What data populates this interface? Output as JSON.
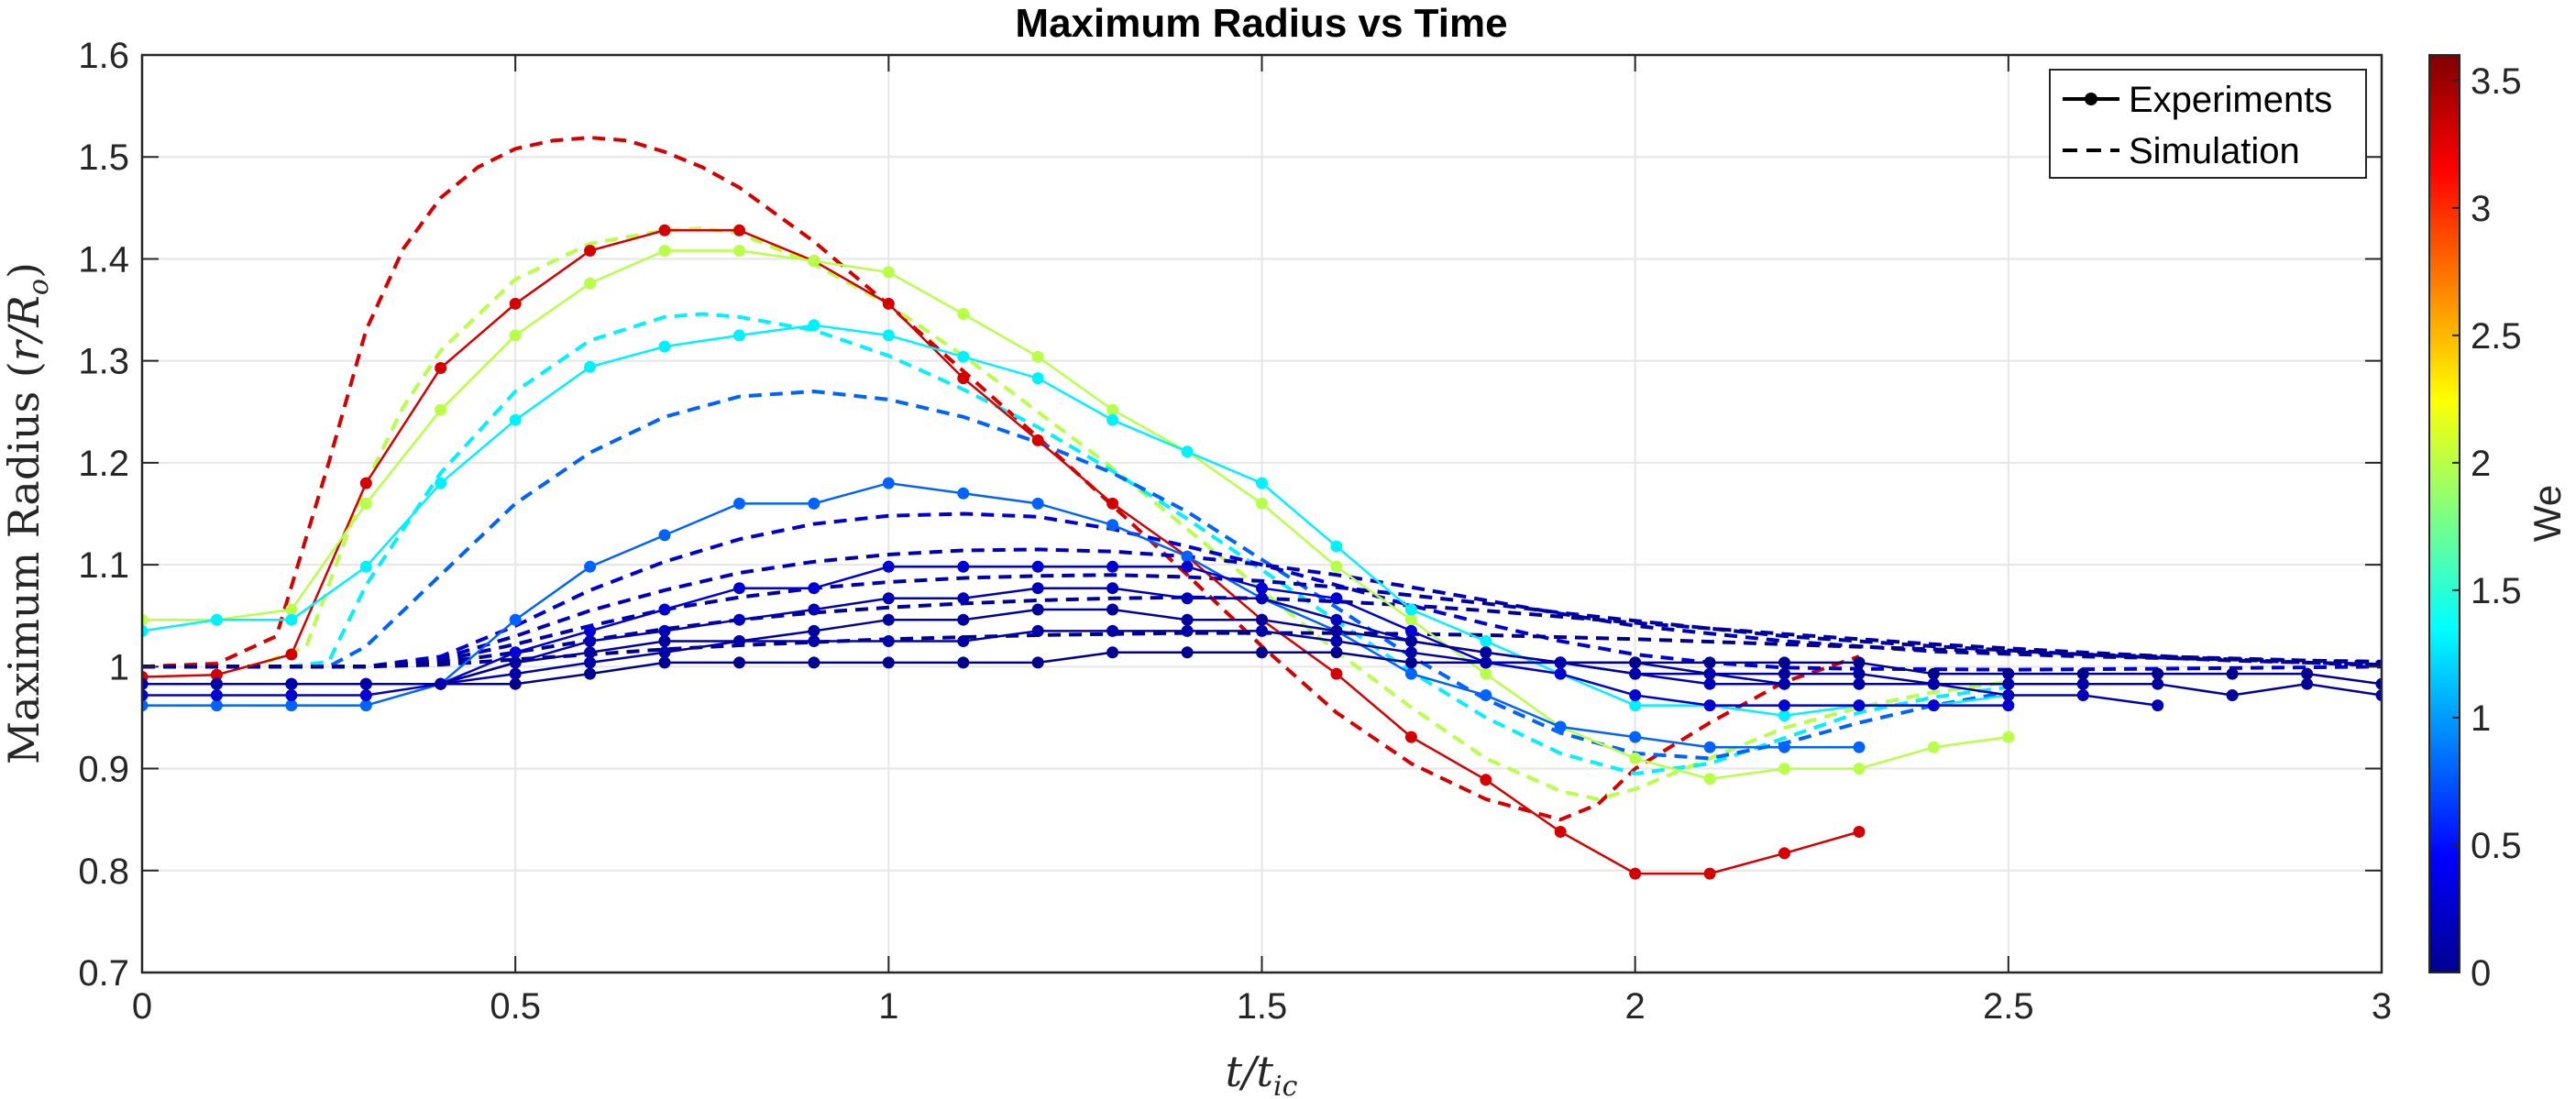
{
  "chart_data": {
    "type": "line",
    "title": "Maximum Radius vs Time",
    "xlabel": "t/t_ic",
    "ylabel": "Maximum Radius (r/R_o)",
    "xlim": [
      0,
      3
    ],
    "ylim": [
      0.7,
      1.6
    ],
    "xticks": [
      "0",
      "0.5",
      "1",
      "1.5",
      "2",
      "2.5",
      "3"
    ],
    "yticks": [
      "0.7",
      "0.8",
      "0.9",
      "1",
      "1.1",
      "1.2",
      "1.3",
      "1.4",
      "1.5",
      "1.6"
    ],
    "grid": true,
    "legend": {
      "position": "top-right",
      "entries": [
        {
          "label": "Experiments",
          "style": "solid-marker"
        },
        {
          "label": "Simulation",
          "style": "dashed"
        }
      ]
    },
    "colorbar": {
      "label": "We",
      "range": [
        0,
        3.6
      ],
      "ticks": [
        "0",
        "0.5",
        "1",
        "1.5",
        "2",
        "2.5",
        "3",
        "3.5"
      ],
      "colormap": "jet"
    },
    "experiments": [
      {
        "we": 3.3,
        "x": [
          0,
          0.1,
          0.2,
          0.3,
          0.4,
          0.5,
          0.6,
          0.7,
          0.8,
          0.9,
          1.0,
          1.1,
          1.2,
          1.3,
          1.4,
          1.5,
          1.6,
          1.7,
          1.8,
          1.9,
          2.0,
          2.1,
          2.2,
          2.3
        ],
        "y": [
          0.99,
          0.992,
          1.012,
          1.18,
          1.293,
          1.356,
          1.408,
          1.428,
          1.428,
          1.398,
          1.356,
          1.283,
          1.222,
          1.16,
          1.108,
          1.046,
          0.993,
          0.931,
          0.889,
          0.838,
          0.797,
          0.797,
          0.817,
          0.838
        ]
      },
      {
        "we": 2.0,
        "x": [
          0,
          0.1,
          0.2,
          0.3,
          0.4,
          0.5,
          0.6,
          0.7,
          0.8,
          0.9,
          1.0,
          1.1,
          1.2,
          1.3,
          1.4,
          1.5,
          1.6,
          1.7,
          1.8,
          1.9,
          2.0,
          2.1,
          2.2,
          2.3,
          2.4,
          2.5
        ],
        "y": [
          1.046,
          1.046,
          1.056,
          1.16,
          1.252,
          1.325,
          1.376,
          1.408,
          1.408,
          1.398,
          1.387,
          1.346,
          1.304,
          1.252,
          1.211,
          1.16,
          1.098,
          1.046,
          0.993,
          0.941,
          0.91,
          0.89,
          0.9,
          0.9,
          0.921,
          0.931
        ]
      },
      {
        "we": 1.3,
        "x": [
          0,
          0.1,
          0.2,
          0.3,
          0.4,
          0.5,
          0.6,
          0.7,
          0.8,
          0.9,
          1.0,
          1.1,
          1.2,
          1.3,
          1.4,
          1.5,
          1.6,
          1.7,
          1.8,
          1.9,
          2.0,
          2.1,
          2.2,
          2.3,
          2.4,
          2.5
        ],
        "y": [
          1.035,
          1.046,
          1.046,
          1.098,
          1.18,
          1.242,
          1.294,
          1.314,
          1.325,
          1.335,
          1.325,
          1.304,
          1.283,
          1.242,
          1.211,
          1.18,
          1.118,
          1.056,
          1.025,
          0.993,
          0.962,
          0.962,
          0.952,
          0.962,
          0.962,
          0.972
        ]
      },
      {
        "we": 0.8,
        "x": [
          0,
          0.1,
          0.2,
          0.3,
          0.4,
          0.5,
          0.6,
          0.7,
          0.8,
          0.9,
          1.0,
          1.1,
          1.2,
          1.3,
          1.4,
          1.5,
          1.6,
          1.7,
          1.8,
          1.9,
          2.0,
          2.1,
          2.2,
          2.3
        ],
        "y": [
          0.962,
          0.962,
          0.962,
          0.962,
          0.983,
          1.046,
          1.098,
          1.129,
          1.16,
          1.16,
          1.18,
          1.17,
          1.16,
          1.139,
          1.108,
          1.067,
          1.035,
          0.993,
          0.972,
          0.941,
          0.931,
          0.921,
          0.921,
          0.921
        ]
      },
      {
        "we": 0.3,
        "x": [
          0,
          0.1,
          0.2,
          0.3,
          0.4,
          0.5,
          0.6,
          0.7,
          0.8,
          0.9,
          1.0,
          1.1,
          1.2,
          1.3,
          1.4,
          1.5,
          1.6,
          1.7,
          1.8,
          1.9,
          2.0,
          2.1,
          2.2,
          2.3,
          2.4,
          2.5
        ],
        "y": [
          0.972,
          0.972,
          0.972,
          0.972,
          0.983,
          1.014,
          1.035,
          1.056,
          1.077,
          1.077,
          1.098,
          1.098,
          1.098,
          1.098,
          1.098,
          1.077,
          1.067,
          1.035,
          1.004,
          0.993,
          0.972,
          0.962,
          0.962,
          0.962,
          0.962,
          0.962
        ]
      },
      {
        "we": 0.2,
        "x": [
          0,
          0.1,
          0.2,
          0.3,
          0.4,
          0.5,
          0.6,
          0.7,
          0.8,
          0.9,
          1.0,
          1.1,
          1.2,
          1.3,
          1.4,
          1.5,
          1.6,
          1.7,
          1.8,
          1.9,
          2.0,
          2.1,
          2.2,
          2.3,
          2.4,
          2.5,
          2.6,
          2.7
        ],
        "y": [
          0.983,
          0.983,
          0.983,
          0.983,
          0.983,
          1.004,
          1.025,
          1.035,
          1.046,
          1.056,
          1.067,
          1.067,
          1.077,
          1.077,
          1.067,
          1.067,
          1.046,
          1.025,
          1.014,
          1.004,
          0.993,
          0.983,
          0.983,
          0.983,
          0.983,
          0.972,
          0.972,
          0.962
        ]
      },
      {
        "we": 0.1,
        "x": [
          0,
          0.1,
          0.2,
          0.3,
          0.4,
          0.5,
          0.6,
          0.7,
          0.8,
          0.9,
          1.0,
          1.1,
          1.2,
          1.3,
          1.4,
          1.5,
          1.6,
          1.7,
          1.8,
          1.9,
          2.0,
          2.1,
          2.2,
          2.3,
          2.4,
          2.5,
          2.6,
          2.7,
          2.8,
          2.9,
          3.0
        ],
        "y": [
          0.983,
          0.983,
          0.983,
          0.983,
          0.983,
          1.004,
          1.014,
          1.025,
          1.025,
          1.035,
          1.046,
          1.046,
          1.056,
          1.056,
          1.046,
          1.046,
          1.035,
          1.025,
          1.014,
          1.004,
          1.004,
          0.993,
          0.993,
          0.993,
          0.983,
          0.983,
          0.983,
          0.983,
          0.972,
          0.983,
          0.972
        ]
      },
      {
        "we": 0.05,
        "x": [
          0,
          0.1,
          0.2,
          0.3,
          0.4,
          0.5,
          0.6,
          0.7,
          0.8,
          0.9,
          1.0,
          1.1,
          1.2,
          1.3,
          1.4,
          1.5,
          1.6,
          1.7,
          1.8,
          1.9,
          2.0,
          2.1,
          2.2,
          2.3,
          2.4,
          2.5,
          2.6,
          2.7,
          2.8,
          2.9,
          3.0
        ],
        "y": [
          0.983,
          0.983,
          0.983,
          0.983,
          0.983,
          0.983,
          0.993,
          1.004,
          1.004,
          1.004,
          1.004,
          1.004,
          1.004,
          1.014,
          1.014,
          1.014,
          1.014,
          1.004,
          1.004,
          1.004,
          1.004,
          1.004,
          1.004,
          1.004,
          0.993,
          0.993,
          0.993,
          0.993,
          0.993,
          0.993,
          0.983
        ]
      },
      {
        "we": 0.15,
        "x": [
          0,
          0.1,
          0.2,
          0.3,
          0.4,
          0.5,
          0.6,
          0.7,
          0.8,
          0.9,
          1.0,
          1.1,
          1.2,
          1.3,
          1.4,
          1.5,
          1.6,
          1.7,
          1.8,
          1.9,
          2.0,
          2.1,
          2.2,
          2.3,
          2.4,
          2.5,
          2.6
        ],
        "y": [
          0.983,
          0.983,
          0.983,
          0.983,
          0.983,
          0.993,
          1.004,
          1.014,
          1.025,
          1.025,
          1.025,
          1.025,
          1.035,
          1.035,
          1.035,
          1.035,
          1.025,
          1.014,
          1.004,
          1.004,
          0.993,
          0.993,
          0.983,
          0.983,
          0.983,
          0.983,
          0.983
        ]
      }
    ],
    "simulations": [
      {
        "we": 3.3,
        "x": [
          0,
          0.1,
          0.18,
          0.25,
          0.3,
          0.35,
          0.4,
          0.45,
          0.5,
          0.55,
          0.6,
          0.65,
          0.7,
          0.75,
          0.8,
          0.9,
          1.0,
          1.1,
          1.2,
          1.3,
          1.4,
          1.5,
          1.6,
          1.7,
          1.8,
          1.9,
          1.95,
          2.0,
          2.1,
          2.2,
          2.3
        ],
        "y": [
          1.0,
          1.003,
          1.03,
          1.2,
          1.33,
          1.41,
          1.46,
          1.49,
          1.508,
          1.516,
          1.519,
          1.516,
          1.505,
          1.49,
          1.47,
          1.417,
          1.355,
          1.29,
          1.225,
          1.158,
          1.09,
          1.02,
          0.955,
          0.905,
          0.87,
          0.85,
          0.865,
          0.9,
          0.945,
          0.985,
          1.01
        ]
      },
      {
        "we": 2.0,
        "x": [
          0,
          0.15,
          0.22,
          0.3,
          0.35,
          0.4,
          0.5,
          0.6,
          0.7,
          0.75,
          0.8,
          0.9,
          1.0,
          1.1,
          1.2,
          1.3,
          1.4,
          1.5,
          1.6,
          1.7,
          1.8,
          1.9,
          1.95,
          2.0,
          2.1,
          2.2,
          2.3,
          2.4,
          2.5
        ],
        "y": [
          1.0,
          1.0,
          1.02,
          1.18,
          1.255,
          1.31,
          1.38,
          1.415,
          1.428,
          1.43,
          1.425,
          1.395,
          1.355,
          1.305,
          1.25,
          1.195,
          1.135,
          1.075,
          1.015,
          0.96,
          0.91,
          0.878,
          0.87,
          0.88,
          0.91,
          0.94,
          0.96,
          0.975,
          0.985
        ]
      },
      {
        "we": 1.3,
        "x": [
          0,
          0.2,
          0.25,
          0.3,
          0.4,
          0.5,
          0.6,
          0.7,
          0.75,
          0.8,
          0.9,
          1.0,
          1.1,
          1.2,
          1.3,
          1.4,
          1.5,
          1.6,
          1.7,
          1.8,
          1.9,
          2.0,
          2.1,
          2.2,
          2.3,
          2.4,
          2.5
        ],
        "y": [
          1.0,
          1.0,
          1.005,
          1.08,
          1.19,
          1.27,
          1.32,
          1.343,
          1.346,
          1.343,
          1.33,
          1.305,
          1.272,
          1.235,
          1.192,
          1.145,
          1.095,
          1.045,
          0.995,
          0.95,
          0.915,
          0.895,
          0.905,
          0.93,
          0.955,
          0.97,
          0.98
        ]
      },
      {
        "we": 0.8,
        "x": [
          0,
          0.25,
          0.3,
          0.4,
          0.5,
          0.6,
          0.7,
          0.8,
          0.9,
          1.0,
          1.1,
          1.2,
          1.3,
          1.4,
          1.5,
          1.6,
          1.7,
          1.8,
          1.9,
          2.0,
          2.1,
          2.2,
          2.3,
          2.4,
          2.5
        ],
        "y": [
          1.0,
          1.0,
          1.02,
          1.09,
          1.16,
          1.21,
          1.245,
          1.265,
          1.27,
          1.262,
          1.245,
          1.22,
          1.19,
          1.152,
          1.105,
          1.058,
          1.01,
          0.968,
          0.935,
          0.915,
          0.91,
          0.925,
          0.945,
          0.962,
          0.975
        ]
      },
      {
        "we": 0.3,
        "x": [
          0,
          0.3,
          0.4,
          0.5,
          0.6,
          0.7,
          0.8,
          0.9,
          1.0,
          1.1,
          1.2,
          1.3,
          1.4,
          1.5,
          1.6,
          1.7,
          1.8,
          1.9,
          2.0,
          2.1,
          2.2,
          2.3,
          2.5,
          2.7,
          3.0
        ],
        "y": [
          1.0,
          1.0,
          1.01,
          1.04,
          1.075,
          1.103,
          1.125,
          1.14,
          1.148,
          1.15,
          1.147,
          1.135,
          1.118,
          1.1,
          1.08,
          1.06,
          1.042,
          1.025,
          1.012,
          1.004,
          0.999,
          0.998,
          0.997,
          0.998,
          1.0
        ]
      },
      {
        "we": 0.2,
        "x": [
          0,
          0.3,
          0.4,
          0.5,
          0.6,
          0.7,
          0.8,
          0.9,
          1.0,
          1.1,
          1.2,
          1.3,
          1.4,
          1.5,
          1.6,
          1.7,
          1.8,
          1.9,
          2.0,
          2.2,
          2.4,
          2.6,
          2.8,
          3.0
        ],
        "y": [
          1.0,
          1.0,
          1.008,
          1.03,
          1.055,
          1.075,
          1.092,
          1.103,
          1.11,
          1.114,
          1.115,
          1.113,
          1.108,
          1.1,
          1.09,
          1.078,
          1.065,
          1.052,
          1.04,
          1.025,
          1.015,
          1.01,
          1.007,
          1.005
        ]
      },
      {
        "we": 0.15,
        "x": [
          0,
          0.3,
          0.4,
          0.5,
          0.6,
          0.7,
          0.8,
          0.9,
          1.0,
          1.1,
          1.2,
          1.3,
          1.4,
          1.5,
          1.6,
          1.7,
          1.8,
          1.9,
          2.0,
          2.2,
          2.4,
          2.6,
          2.8,
          3.0
        ],
        "y": [
          1.0,
          1.0,
          1.006,
          1.022,
          1.04,
          1.056,
          1.068,
          1.077,
          1.083,
          1.087,
          1.089,
          1.09,
          1.088,
          1.084,
          1.078,
          1.07,
          1.062,
          1.053,
          1.045,
          1.03,
          1.02,
          1.012,
          1.006,
          1.002
        ]
      },
      {
        "we": 0.1,
        "x": [
          0,
          0.3,
          0.4,
          0.5,
          0.6,
          0.7,
          0.8,
          0.9,
          1.0,
          1.1,
          1.2,
          1.3,
          1.4,
          1.5,
          1.6,
          1.7,
          1.8,
          1.9,
          2.0,
          2.2,
          2.4,
          2.6,
          2.8,
          3.0
        ],
        "y": [
          1.0,
          1.0,
          1.004,
          1.014,
          1.026,
          1.037,
          1.046,
          1.053,
          1.058,
          1.062,
          1.065,
          1.067,
          1.068,
          1.067,
          1.064,
          1.06,
          1.055,
          1.049,
          1.043,
          1.032,
          1.022,
          1.014,
          1.007,
          1.001
        ]
      },
      {
        "we": 0.05,
        "x": [
          0,
          0.3,
          0.4,
          0.5,
          0.6,
          0.7,
          0.8,
          0.9,
          1.0,
          1.1,
          1.2,
          1.3,
          1.4,
          1.5,
          1.6,
          1.7,
          1.8,
          1.9,
          2.0,
          2.2,
          2.4,
          2.6,
          2.8,
          3.0
        ],
        "y": [
          1.0,
          1.0,
          1.002,
          1.007,
          1.012,
          1.017,
          1.021,
          1.024,
          1.027,
          1.029,
          1.031,
          1.032,
          1.033,
          1.033,
          1.033,
          1.032,
          1.031,
          1.029,
          1.027,
          1.022,
          1.017,
          1.012,
          1.008,
          1.004
        ]
      }
    ]
  }
}
